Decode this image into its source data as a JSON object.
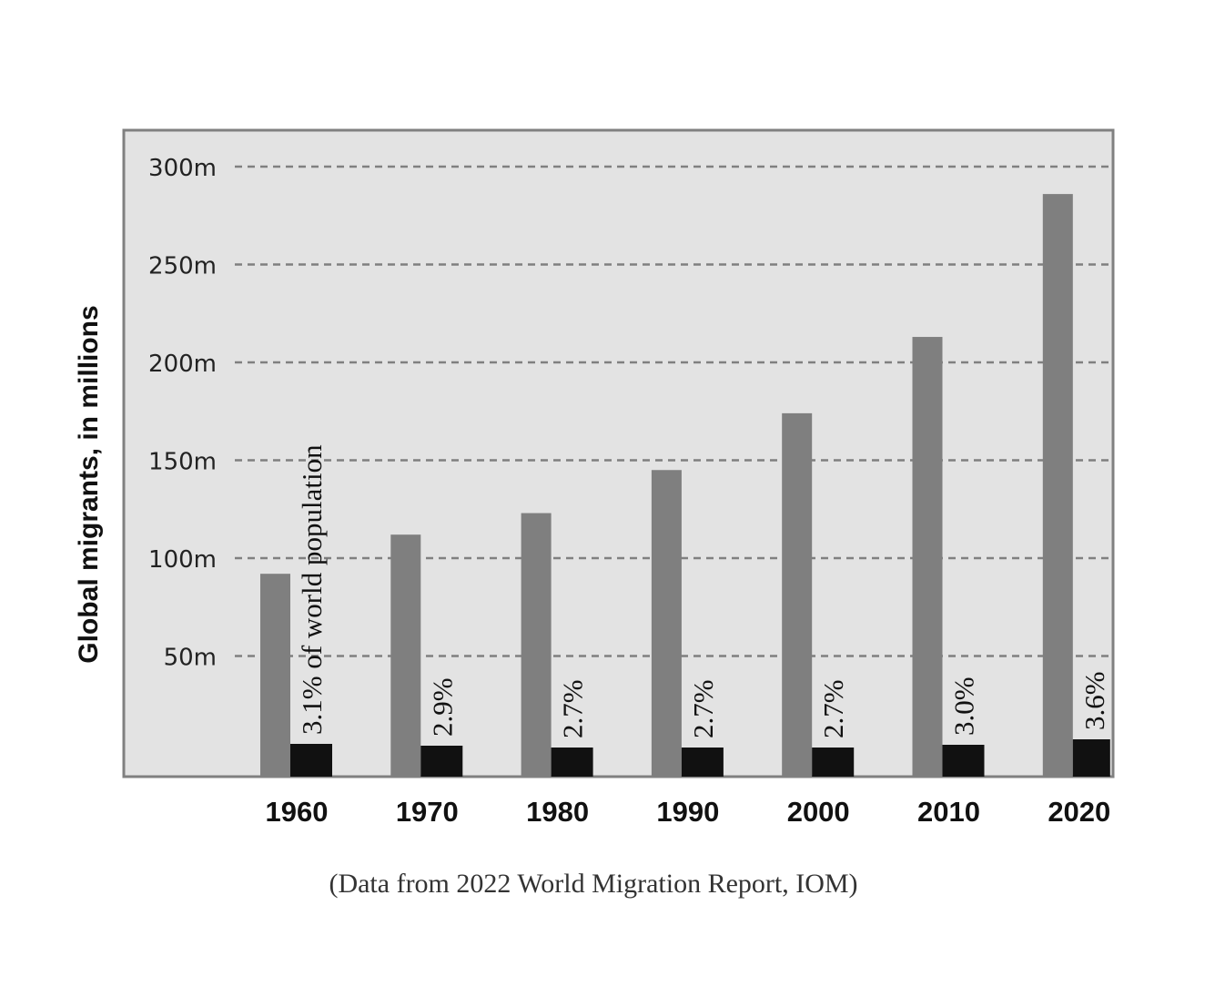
{
  "chart_data": {
    "type": "bar",
    "categories": [
      "1960",
      "1970",
      "1980",
      "1990",
      "2000",
      "2010",
      "2020"
    ],
    "series": [
      {
        "values": [
          92,
          112,
          123,
          145,
          174,
          213,
          286
        ],
        "color": "#7f7f7f"
      },
      {
        "values": [
          3.1,
          2.9,
          2.7,
          2.7,
          2.7,
          3.0,
          3.6
        ],
        "color": "#111111"
      }
    ],
    "pct_labels": [
      "3.1% of world population",
      "2.9%",
      "2.7%",
      "2.7%",
      "2.7%",
      "3.0%",
      "3.6%"
    ],
    "ylabel": "Global migrants, in millions",
    "yticks": [
      50,
      100,
      150,
      200,
      250,
      300
    ],
    "ytick_labels": [
      "50m",
      "100m",
      "150m",
      "200m",
      "250m",
      "300m"
    ],
    "ylim": [
      0,
      300
    ],
    "grid": "dashed horizontal",
    "background": "#e3e3e3",
    "caption": "(Data from 2022 World Migration Report, IOM)"
  }
}
